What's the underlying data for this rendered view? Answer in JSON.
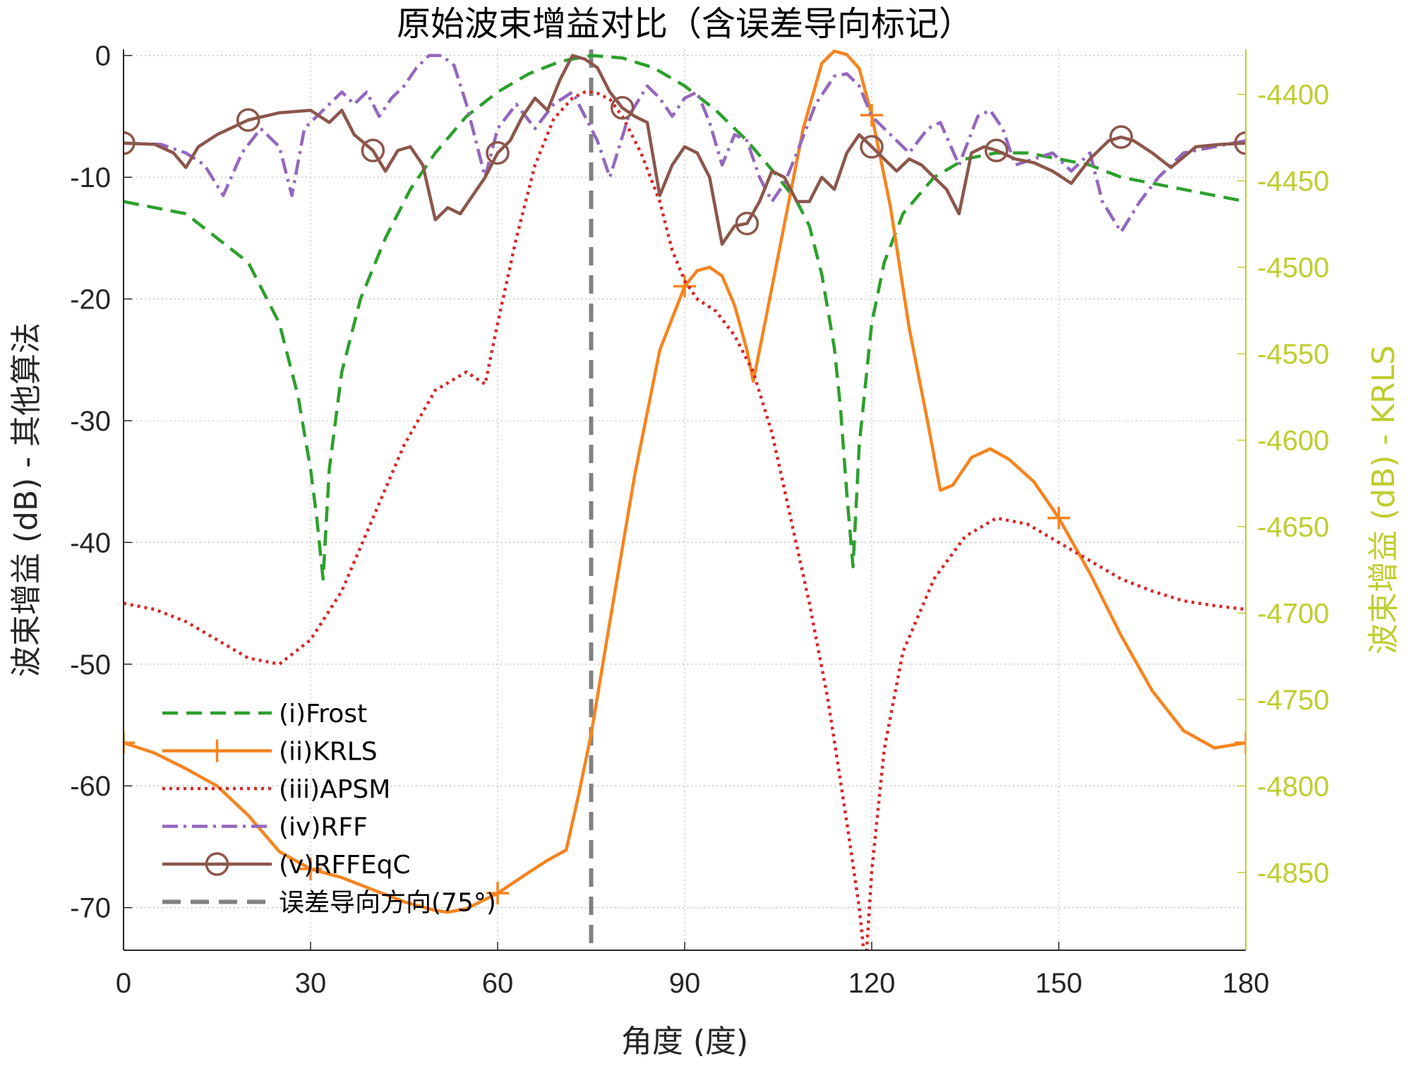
{
  "chart_data": {
    "type": "line",
    "title": "原始波束增益对比（含误差导向标记）",
    "xlabel": "角度 (度)",
    "ylabel_left": "波束增益 (dB) - 其他算法",
    "ylabel_right": "波束增益 (dB) - KRLS",
    "xlim": [
      0,
      180
    ],
    "ylim_left": [
      -73.5,
      0.5
    ],
    "ylim_right": [
      -4895,
      -4374
    ],
    "xticks": [
      "0",
      "30",
      "60",
      "90",
      "120",
      "150",
      "180"
    ],
    "yticks_left": [
      "0",
      "-10",
      "-20",
      "-30",
      "-40",
      "-50",
      "-60",
      "-70"
    ],
    "yticks_right": [
      "-4400",
      "-4450",
      "-4500",
      "-4550",
      "-4600",
      "-4650",
      "-4700",
      "-4750",
      "-4800",
      "-4850"
    ],
    "grid": true,
    "legend_position": "bottom-left",
    "vertical_marker": {
      "name": "误差导向方向(75°)",
      "x": 75,
      "color": "#808080"
    },
    "series": [
      {
        "name": "(i)Frost",
        "axis": "left",
        "color": "#2ca02c",
        "style": "dashed",
        "marker": "none",
        "x": [
          0,
          10,
          20,
          25,
          28,
          30,
          31,
          32,
          33,
          35,
          38,
          42,
          46,
          50,
          55,
          60,
          65,
          70,
          75,
          80,
          85,
          90,
          95,
          100,
          105,
          108,
          110,
          112,
          114,
          115,
          116,
          117,
          118,
          120,
          122,
          125,
          130,
          135,
          140,
          145,
          150,
          155,
          160,
          165,
          170,
          175,
          180
        ],
        "values": [
          -12,
          -13,
          -17,
          -22,
          -28,
          -34,
          -38,
          -43,
          -34,
          -26,
          -20,
          -15,
          -11,
          -8,
          -5,
          -3,
          -1.5,
          -0.5,
          0,
          -0.2,
          -1,
          -2.5,
          -4.5,
          -7,
          -10,
          -12,
          -14,
          -18,
          -24,
          -29,
          -36,
          -42,
          -32,
          -22,
          -17,
          -13,
          -10,
          -8.5,
          -8,
          -8,
          -8.5,
          -9,
          -10,
          -10.5,
          -11,
          -11.5,
          -12
        ]
      },
      {
        "name": "(ii)KRLS",
        "axis": "right",
        "color": "#f5841f",
        "style": "solid",
        "marker": "plus",
        "marker_x": [
          0,
          30,
          60,
          90,
          120,
          150,
          180
        ],
        "x": [
          0,
          5,
          10,
          15,
          20,
          25,
          30,
          35,
          40,
          45,
          50,
          52,
          55,
          60,
          65,
          68,
          71,
          73,
          75,
          78,
          82,
          86,
          90,
          92,
          94,
          96,
          98,
          100,
          101,
          103,
          106,
          109,
          112,
          114,
          116,
          118,
          120,
          123,
          126,
          129,
          131,
          133,
          136,
          139,
          142,
          146,
          150,
          155,
          160,
          165,
          170,
          175,
          180
        ],
        "values": [
          -4775,
          -4781,
          -4790,
          -4800,
          -4817,
          -4838,
          -4848,
          -4853,
          -4860,
          -4867,
          -4872,
          -4873,
          -4871,
          -4862,
          -4850,
          -4843,
          -4837,
          -4805,
          -4770,
          -4705,
          -4620,
          -4548,
          -4511,
          -4502,
          -4500,
          -4505,
          -4522,
          -4548,
          -4566,
          -4530,
          -4475,
          -4420,
          -4382,
          -4375,
          -4377,
          -4385,
          -4412,
          -4465,
          -4535,
          -4590,
          -4629,
          -4626,
          -4610,
          -4605,
          -4611,
          -4624,
          -4645,
          -4677,
          -4713,
          -4745,
          -4768,
          -4778,
          -4775
        ]
      },
      {
        "name": "(iii)APSM",
        "axis": "left",
        "color": "#d62728",
        "style": "dotted",
        "marker": "none",
        "x": [
          0,
          5,
          10,
          15,
          20,
          25,
          30,
          35,
          40,
          45,
          50,
          55,
          58,
          60,
          63,
          66,
          69,
          72,
          74,
          75,
          76,
          78,
          80,
          83,
          86,
          88,
          90,
          92,
          95,
          98,
          101,
          104,
          107,
          110,
          113,
          116,
          118,
          119,
          120,
          122,
          125,
          130,
          135,
          140,
          145,
          150,
          155,
          160,
          165,
          170,
          175,
          180
        ],
        "values": [
          -45,
          -45.5,
          -46.5,
          -48,
          -49.5,
          -50,
          -48,
          -44,
          -38,
          -32,
          -27.5,
          -26,
          -27,
          -22,
          -15,
          -9,
          -5.2,
          -3.5,
          -3,
          -3,
          -3.1,
          -3.6,
          -5,
          -8,
          -12,
          -16,
          -18.5,
          -20,
          -21,
          -23,
          -26,
          -31,
          -38,
          -45,
          -53,
          -63,
          -70,
          -75,
          -67,
          -57,
          -49,
          -43,
          -39.5,
          -38,
          -38.5,
          -40,
          -41.5,
          -43,
          -44,
          -44.8,
          -45.2,
          -45.5
        ]
      },
      {
        "name": "(iv)RFF",
        "axis": "left",
        "color": "#9467bd",
        "style": "dashdot",
        "marker": "none",
        "x": [
          0,
          6,
          10,
          13,
          16,
          19,
          22,
          25,
          27,
          29,
          32,
          35,
          37,
          39,
          41,
          43,
          45,
          47,
          49,
          51,
          53,
          55,
          57,
          58,
          60,
          63,
          66,
          69,
          72,
          74,
          76,
          78,
          81,
          84,
          86,
          88,
          90,
          92,
          94,
          96,
          98,
          100,
          102,
          104,
          106,
          108,
          111,
          114,
          116,
          118,
          120,
          123,
          126,
          129,
          131,
          134,
          137,
          139,
          141,
          143,
          146,
          149,
          152,
          155,
          157,
          160,
          163,
          166,
          170,
          175,
          180
        ],
        "values": [
          -7.2,
          -7.3,
          -8,
          -9,
          -11.5,
          -8,
          -6,
          -7.5,
          -11.5,
          -6,
          -4.5,
          -3,
          -4,
          -3,
          -5,
          -3.5,
          -2.5,
          -1,
          0,
          0,
          -0.8,
          -4,
          -8,
          -10,
          -6,
          -4,
          -6,
          -4,
          -3,
          -5,
          -7,
          -10,
          -5,
          -2.5,
          -3.5,
          -5,
          -3.5,
          -3,
          -5.5,
          -9,
          -6.5,
          -7,
          -10,
          -12,
          -10.5,
          -8,
          -4,
          -1.7,
          -1.5,
          -2.5,
          -5,
          -6.5,
          -8,
          -6,
          -5.5,
          -9,
          -5,
          -4.5,
          -6,
          -9,
          -8.5,
          -8,
          -9.5,
          -8,
          -12,
          -14.5,
          -12,
          -10,
          -8,
          -7.5,
          -7
        ]
      },
      {
        "name": "(v)RFFEqC",
        "axis": "left",
        "color": "#8c564b",
        "style": "solid",
        "marker": "circle",
        "marker_x": [
          0,
          20,
          40,
          60,
          80,
          100,
          120,
          140,
          160,
          180
        ],
        "x": [
          0,
          5,
          8,
          10,
          12,
          15,
          20,
          25,
          30,
          33,
          35,
          37,
          40,
          42,
          44,
          46,
          48,
          50,
          52,
          54,
          56,
          58,
          60,
          62,
          64,
          66,
          68,
          70,
          72,
          74,
          76,
          78,
          80,
          82,
          84,
          86,
          88,
          90,
          92,
          94,
          96,
          98,
          100,
          102,
          104,
          106,
          108,
          110,
          112,
          114,
          116,
          118,
          120,
          122,
          124,
          126,
          128,
          130,
          132,
          134,
          136,
          138,
          140,
          143,
          146,
          149,
          152,
          155,
          158,
          160,
          162,
          165,
          168,
          172,
          176,
          180
        ],
        "values": [
          -7.2,
          -7.3,
          -8,
          -9.2,
          -7.5,
          -6.5,
          -5.3,
          -4.7,
          -4.5,
          -5.5,
          -4.5,
          -6.5,
          -7.8,
          -9.5,
          -7.8,
          -7.5,
          -9,
          -13.5,
          -12.5,
          -13,
          -11.5,
          -10,
          -8,
          -7,
          -5,
          -3.5,
          -4.5,
          -2,
          0,
          -0.3,
          -1,
          -3,
          -4.3,
          -5,
          -5.5,
          -11.5,
          -9,
          -7.5,
          -8,
          -10,
          -15.5,
          -14,
          -13.8,
          -12,
          -9.5,
          -10,
          -12,
          -12,
          -10,
          -11,
          -8,
          -6.5,
          -7.5,
          -8.5,
          -9.5,
          -8.5,
          -9,
          -10,
          -11,
          -13,
          -8,
          -7.5,
          -7.8,
          -8.5,
          -8.8,
          -9.5,
          -10.5,
          -8.5,
          -7,
          -6.7,
          -7,
          -8,
          -9.2,
          -7.5,
          -7.3,
          -7.2
        ]
      }
    ]
  }
}
